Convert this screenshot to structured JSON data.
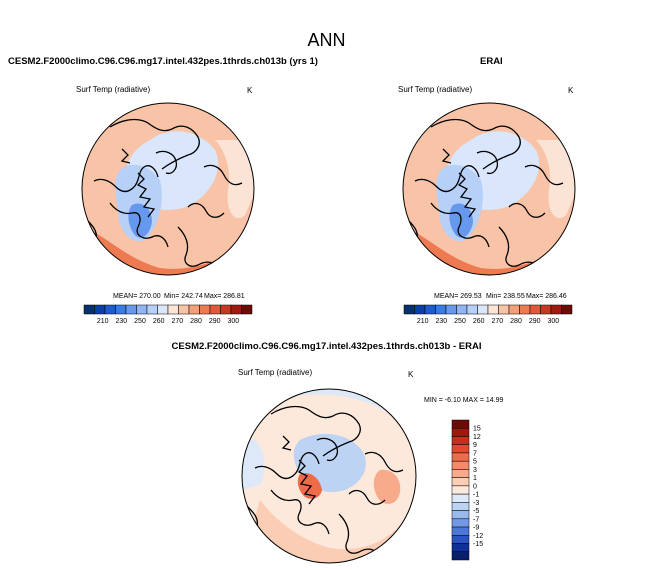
{
  "page_title": "ANN",
  "panels": [
    {
      "case_title": "CESM2.F2000climo.C96.C96.mg17.intel.432pes.1thrds.ch013b (yrs 1)",
      "variable": "Surf Temp (radiative)",
      "units": "K",
      "stats": {
        "mean": "MEAN= 270.00",
        "min": "Min= 242.74",
        "max": "Max= 286.81"
      },
      "colorbar": {
        "orientation": "horizontal",
        "colors": [
          "#08306b",
          "#0b3fa8",
          "#1f5ad0",
          "#3b7be0",
          "#6699ee",
          "#8fb5f4",
          "#b7d0f8",
          "#d9e6fb",
          "#fbe4d6",
          "#f8c3a6",
          "#f39f7a",
          "#ee7a52",
          "#e2573a",
          "#c73822",
          "#9e1c0f",
          "#6e0a06"
        ],
        "tick_labels": [
          "210",
          "230",
          "250",
          "260",
          "270",
          "280",
          "290",
          "300"
        ]
      }
    },
    {
      "case_title": "ERAI",
      "variable": "Surf Temp (radiative)",
      "units": "K",
      "stats": {
        "mean": "MEAN= 269.53",
        "min": "Min= 238.55",
        "max": "Max= 286.46"
      },
      "colorbar": {
        "orientation": "horizontal",
        "colors": [
          "#08306b",
          "#0b3fa8",
          "#1f5ad0",
          "#3b7be0",
          "#6699ee",
          "#8fb5f4",
          "#b7d0f8",
          "#d9e6fb",
          "#fbe4d6",
          "#f8c3a6",
          "#f39f7a",
          "#ee7a52",
          "#e2573a",
          "#c73822",
          "#9e1c0f",
          "#6e0a06"
        ],
        "tick_labels": [
          "210",
          "230",
          "250",
          "260",
          "270",
          "280",
          "290",
          "300"
        ]
      }
    },
    {
      "case_title": "CESM2.F2000climo.C96.C96.mg17.intel.432pes.1thrds.ch013b - ERAI",
      "variable": "Surf Temp (radiative)",
      "units": "K",
      "stats": {
        "minmax": "MIN =  -6.10 MAX =  14.99"
      },
      "colorbar": {
        "orientation": "vertical",
        "colors": [
          "#6e0a06",
          "#a3160b",
          "#c92e1a",
          "#e24a30",
          "#ef6b4a",
          "#f58b66",
          "#f8ab8a",
          "#fbcdb4",
          "#fde8dc",
          "#dde9f8",
          "#bcd3f4",
          "#9ab9ee",
          "#7399e4",
          "#4d77d6",
          "#2a54c2",
          "#0f2f99",
          "#08206a"
        ],
        "tick_labels": [
          "15",
          "12",
          "9",
          "7",
          "5",
          "3",
          "1",
          "0",
          "-1",
          "-3",
          "-5",
          "-7",
          "-9",
          "-12",
          "-15"
        ]
      }
    }
  ],
  "chart_data": [
    {
      "type": "heatmap",
      "projection": "north-polar-stereographic",
      "title": "CESM2.F2000climo.C96.C96.mg17.intel.432pes.1thrds.ch013b (yrs 1)",
      "variable": "Surf Temp (radiative)",
      "units": "K",
      "mean": 270.0,
      "min": 242.74,
      "max": 286.81,
      "contour_levels": [
        210,
        230,
        250,
        260,
        270,
        280,
        290,
        300
      ]
    },
    {
      "type": "heatmap",
      "projection": "north-polar-stereographic",
      "title": "ERAI",
      "variable": "Surf Temp (radiative)",
      "units": "K",
      "mean": 269.53,
      "min": 238.55,
      "max": 286.46,
      "contour_levels": [
        210,
        230,
        250,
        260,
        270,
        280,
        290,
        300
      ]
    },
    {
      "type": "heatmap",
      "projection": "north-polar-stereographic",
      "title": "CESM2.F2000climo.C96.C96.mg17.intel.432pes.1thrds.ch013b - ERAI",
      "variable": "Surf Temp (radiative)",
      "units": "K",
      "min": -6.1,
      "max": 14.99,
      "contour_levels": [
        -15,
        -12,
        -9,
        -7,
        -5,
        -3,
        -1,
        0,
        1,
        3,
        5,
        7,
        9,
        12,
        15
      ]
    }
  ]
}
